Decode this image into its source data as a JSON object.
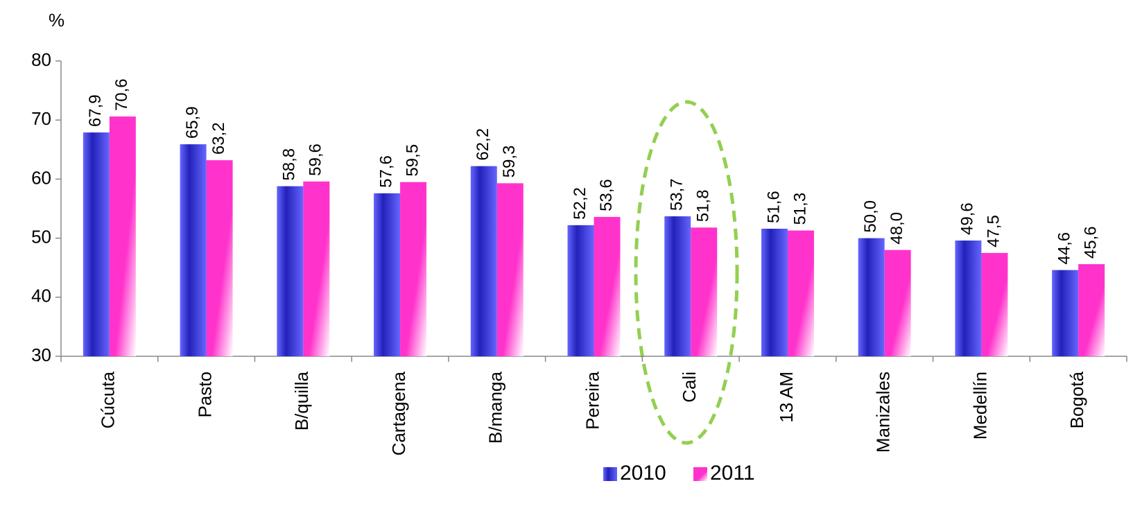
{
  "chart_data": {
    "type": "bar",
    "y_label": "%",
    "categories": [
      "Cúcuta",
      "Pasto",
      "B/quilla",
      "Cartagena",
      "B/manga",
      "Pereira",
      "Cali",
      "13 AM",
      "Manizales",
      "Medellín",
      "Bogotá"
    ],
    "series": [
      {
        "name": "2010",
        "color": "#6666ff",
        "values": [
          67.9,
          65.9,
          58.8,
          57.6,
          62.2,
          52.2,
          53.7,
          51.6,
          50.0,
          49.6,
          44.6
        ],
        "value_labels": [
          "67,9",
          "65,9",
          "58,8",
          "57,6",
          "62,2",
          "52,2",
          "53,7",
          "51,6",
          "50,0",
          "49,6",
          "44,6"
        ]
      },
      {
        "name": "2011",
        "color": "#ff33cc",
        "values": [
          70.6,
          63.2,
          59.6,
          59.5,
          59.3,
          53.6,
          51.8,
          51.3,
          48.0,
          47.5,
          45.6
        ],
        "value_labels": [
          "70,6",
          "63,2",
          "59,6",
          "59,5",
          "59,3",
          "53,6",
          "51,8",
          "51,3",
          "48,0",
          "47,5",
          "45,6"
        ]
      }
    ],
    "ylim": [
      30,
      80
    ],
    "yticks": [
      30,
      40,
      50,
      60,
      70,
      80
    ],
    "grid": false,
    "legend": "bottom"
  }
}
